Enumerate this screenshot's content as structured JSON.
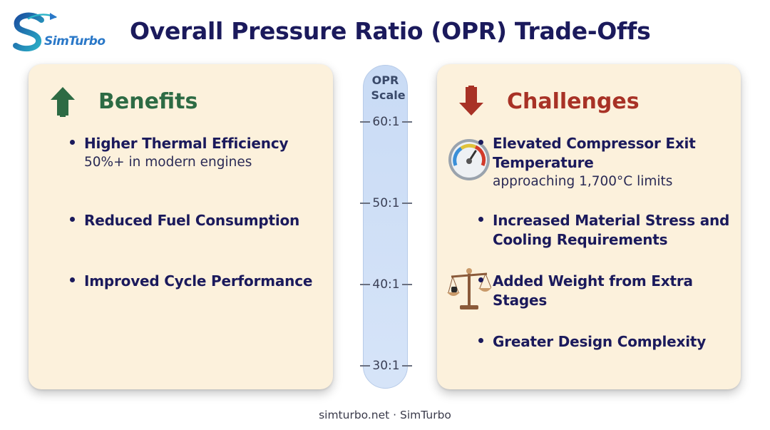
{
  "logo": {
    "text": "SimTurbo",
    "icon": "simturbo-logo-icon"
  },
  "title": "Overall Pressure Ratio (OPR) Trade-Offs",
  "benefits": {
    "heading": "Benefits",
    "icon": "arrow-up-icon",
    "color": "#2d6b44",
    "items": [
      {
        "main": "Higher Thermal Efficiency",
        "sub": "50%+ in modern engines"
      },
      {
        "main": "Reduced Fuel Consumption"
      },
      {
        "main": "Improved Cycle Performance"
      }
    ]
  },
  "challenges": {
    "heading": "Challenges",
    "icon": "arrow-down-icon",
    "color": "#a83226",
    "items": [
      {
        "main": "Elevated Compressor Exit Temperature",
        "sub": "approaching 1,700°C limits",
        "icon": "gauge-icon"
      },
      {
        "main": "Increased Material Stress and Cooling Requirements"
      },
      {
        "main": "Added Weight from Extra Stages",
        "icon": "balance-scale-icon"
      },
      {
        "main": "Greater Design Complexity"
      }
    ]
  },
  "opr_scale": {
    "title": "OPR Scale",
    "ticks": [
      "60:1",
      "50:1",
      "40:1",
      "30:1"
    ]
  },
  "footer": "simturbo.net · SimTurbo"
}
